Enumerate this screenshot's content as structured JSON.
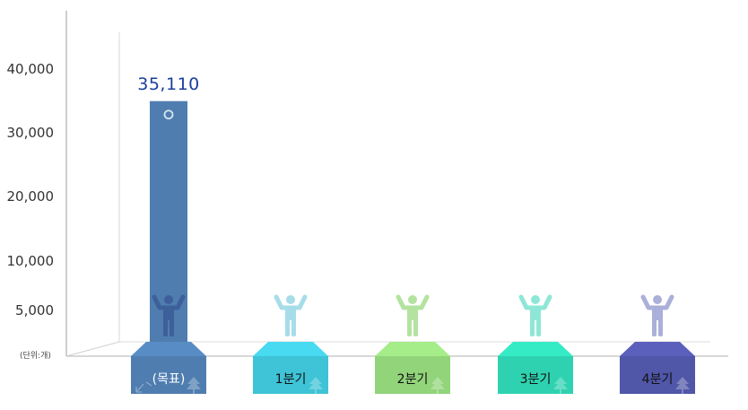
{
  "chart_data": {
    "type": "bar",
    "categories": [
      "(목표)",
      "1분기",
      "2분기",
      "3분기",
      "4분기"
    ],
    "values": [
      35110,
      0,
      0,
      0,
      0
    ],
    "value_labels": [
      "35,110",
      "",
      "",
      "",
      ""
    ],
    "y_ticks": [
      {
        "value": 5000,
        "label": "5,000"
      },
      {
        "value": 10000,
        "label": "10,000"
      },
      {
        "value": 20000,
        "label": "20,000"
      },
      {
        "value": 30000,
        "label": "30,000"
      },
      {
        "value": 40000,
        "label": "40,000"
      }
    ],
    "unit_label": "(단위:개)",
    "colors": [
      "#4f7db0",
      "#3fc3d6",
      "#92d47a",
      "#2fd2b0",
      "#5056a8"
    ],
    "figure_colors": [
      "#3d5f9a",
      "#a6dde9",
      "#b4e3a0",
      "#8ee7d6",
      "#aab0d9"
    ],
    "grid": false,
    "legend": "none"
  }
}
